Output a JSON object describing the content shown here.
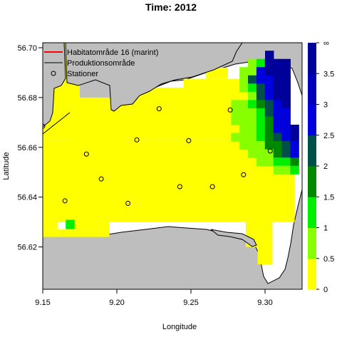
{
  "chart_data": {
    "type": "heatmap",
    "title": "Time: 2012",
    "xlabel": "Longitude",
    "ylabel": "Latitude",
    "xlim": [
      9.15,
      9.325
    ],
    "ylim": [
      56.603,
      56.702
    ],
    "x_ticks": [
      9.15,
      9.2,
      9.25,
      9.3
    ],
    "x_tick_labels": [
      "9.15",
      "9.20",
      "9.25",
      "9.30"
    ],
    "y_ticks": [
      56.62,
      56.64,
      56.66,
      56.68,
      56.7
    ],
    "y_tick_labels": [
      "56.62",
      "56.64",
      "56.66",
      "56.68",
      "56.70"
    ],
    "grid": false,
    "legend_position": "top-left",
    "legend": [
      {
        "label": "Habitatområde 16 (marint)",
        "symbol": "line",
        "color": "#ff0000"
      },
      {
        "label": "Produktionsområde",
        "symbol": "line",
        "color": "#000000"
      },
      {
        "label": "Stationer",
        "symbol": "circle",
        "color": "#000000"
      }
    ],
    "colorbar": {
      "ticks": [
        "0",
        "0.5",
        "1",
        "1.5",
        "2",
        "2.5",
        "3",
        "3.5",
        "∞"
      ],
      "colors": [
        "#ffff00",
        "#88ff00",
        "#00ee00",
        "#008800",
        "#00504a",
        "#0000dd",
        "#0000bb",
        "#00009a"
      ],
      "top_label": "∞"
    },
    "palette": {
      "Y": "#ffff00",
      "L": "#88ff00",
      "G": "#00ee00",
      "D": "#008800",
      "T": "#00504a",
      "B": "#0000dd",
      "M": "#0000bb",
      "N": "#00009a",
      "land": "#bebebe",
      "water": "#ffffff"
    },
    "grid_x0": 9.15,
    "grid_y_top": 56.702,
    "cell_dx": 0.00571,
    "cell_dy": 0.00329,
    "grid_rows": [
      "YYYYYYYYYYYYYYYYYYYYYYYYYYYYYYYYYYYYYYYY",
      "YYYYYYYYYYYYYYYYYYYYYYYYYYYYYYYYYYYYYYYY",
      "YYYYYYYYYYYYYYYYYYYYYYYYYYYYYYYYYYYYYYYY",
      "YYYYYYYYYYYYYYYYYYYYYYYYYYYYYYYYYYYYYYYY",
      "YYYYYYYYYYYYYYYYYYYYYYYYYYYYYYYYYYYYYYYY",
      "YYYYYYYYYYYYYYYYYYYYYYYYYYYYYYYYYYYYYYYY",
      "YYYYYYYYYYYYYYYYYYYYYYYYYYYYYYYYYYYYYYYY",
      "YYYYYYYYYYYYYYYYYYYYYYYYYYYYYYYYYYYYYYYY",
      "YYYYYYYYYYYYYYYYYYYYYYYYYYYYYYYYYYYYYYYY",
      "YYYYYYYYYYYYYYYYYYYYYYYYYYYYYYYYYYYYYYYY",
      "YYYYYYYYYYYYYYYYYYYYYYYYYYYYYYYYYYYYYYYY",
      "YYYYYYYYYYYYYYYYYYYYYYYYYYYYYYYYYYYYYYYY",
      "YYYYYYYYYYYYYYYYYYYYYYYYYYYYYYYYYYYYYYYY",
      "YYYYYYYYYYYYYYYYYYYYYYYYYYYYYYYYYYYYYYYY",
      "YYYYYYYYYYYYYYYYYYYYYYYYYYYYYYYYYYYYYYYY",
      "YYYYYYYYYYYYYYYYYYYYYYYYYYYYYYYYYYYYYYYY",
      "YYYYYYYYYYYYYYYYYYYYYYYYYYYYYYYYYYYYYYYY",
      "YYYYYYYYYYYYYYYYYYYYYYYYYYYYYYYYYYYYYYYY",
      "YYYYYYYYYYYYYYYYYYYYYYYYYYYYYYYYYYYYYYYY",
      "YYYYYYYYYYYYYYYYYYYYYYYYYYYYYYYYYYYYYYYY",
      "YYYYYYYYYYYYYYYYYYYYYYYYYYYYYYYYYYYYYYYY",
      "YYYYYYYYYYYYYYYYYYYYYYYYYYYYYYYYYYYYYYYY",
      "YYYYYYYYYYYYYYYYYYYYYYYYYYYYYYYYYYYYYYYY",
      "YYYYYYYYYYYYYYYYYYYYYYYYYYYYYYYYYYYYYYYY",
      "YYYYYYYYYYYYYYYYYYYYYYYYYYYYYYYYYYYYYYYY",
      "YYYYYYYYYYYYYYYYYYYYYYYYYYYYYYYYYYYYYYYY",
      "YYYYYYYYYYYYYYYYYYYYYYYYYYYYYYYYYYYYYYYY",
      "YYYYYYYYYYYYYYYYYYYYYYYYYYYYYYYYYYYYYYYY",
      "YYYYYYYYYYYYYYYYYYYYYYYYYYYYYYYYYYYYYYYY",
      "YYYYYYYYYYYYYYYYYYYYYYYYYYYYYYYYYYYYYYYY"
    ],
    "cells": [
      {
        "c": "N",
        "x0": 9.3,
        "y0": 56.6955,
        "w": 0.0057,
        "h": 0.0033
      },
      {
        "c": "L",
        "x0": 9.2885,
        "y0": 56.6922,
        "w": 0.0057,
        "h": 0.0033
      },
      {
        "c": "G",
        "x0": 9.2942,
        "y0": 56.6922,
        "w": 0.0057,
        "h": 0.0033
      },
      {
        "c": "N",
        "x0": 9.2999,
        "y0": 56.6922,
        "w": 0.0057,
        "h": 0.0033
      },
      {
        "c": "N",
        "x0": 9.3056,
        "y0": 56.6922,
        "w": 0.0057,
        "h": 0.0033
      },
      {
        "c": "N",
        "x0": 9.3113,
        "y0": 56.6922,
        "w": 0.0057,
        "h": 0.0033
      },
      {
        "c": "L",
        "x0": 9.2828,
        "y0": 56.6889,
        "w": 0.0057,
        "h": 0.0033
      },
      {
        "c": "L",
        "x0": 9.2885,
        "y0": 56.6889,
        "w": 0.0057,
        "h": 0.0033
      },
      {
        "c": "B",
        "x0": 9.2942,
        "y0": 56.6889,
        "w": 0.0057,
        "h": 0.0033
      },
      {
        "c": "N",
        "x0": 9.2999,
        "y0": 56.6889,
        "w": 0.0057,
        "h": 0.0033
      },
      {
        "c": "N",
        "x0": 9.3056,
        "y0": 56.6889,
        "w": 0.0057,
        "h": 0.0033
      },
      {
        "c": "N",
        "x0": 9.3113,
        "y0": 56.6889,
        "w": 0.0057,
        "h": 0.0033
      },
      {
        "c": "L",
        "x0": 9.2828,
        "y0": 56.6856,
        "w": 0.0057,
        "h": 0.0033
      },
      {
        "c": "T",
        "x0": 9.2885,
        "y0": 56.6856,
        "w": 0.0057,
        "h": 0.0033
      },
      {
        "c": "B",
        "x0": 9.2942,
        "y0": 56.6856,
        "w": 0.0057,
        "h": 0.0033
      },
      {
        "c": "B",
        "x0": 9.2999,
        "y0": 56.6856,
        "w": 0.0057,
        "h": 0.0033
      },
      {
        "c": "N",
        "x0": 9.3056,
        "y0": 56.6856,
        "w": 0.0057,
        "h": 0.0033
      },
      {
        "c": "N",
        "x0": 9.3113,
        "y0": 56.6856,
        "w": 0.0057,
        "h": 0.0033
      },
      {
        "c": "L",
        "x0": 9.2828,
        "y0": 56.6823,
        "w": 0.0057,
        "h": 0.0033
      },
      {
        "c": "G",
        "x0": 9.2885,
        "y0": 56.6823,
        "w": 0.0057,
        "h": 0.0033
      },
      {
        "c": "T",
        "x0": 9.2942,
        "y0": 56.6823,
        "w": 0.0057,
        "h": 0.0033
      },
      {
        "c": "B",
        "x0": 9.2999,
        "y0": 56.6823,
        "w": 0.0057,
        "h": 0.0033
      },
      {
        "c": "N",
        "x0": 9.3056,
        "y0": 56.6823,
        "w": 0.0057,
        "h": 0.0033
      },
      {
        "c": "N",
        "x0": 9.3113,
        "y0": 56.6823,
        "w": 0.0057,
        "h": 0.0033
      },
      {
        "c": "L",
        "x0": 9.2885,
        "y0": 56.679,
        "w": 0.0057,
        "h": 0.0033
      },
      {
        "c": "T",
        "x0": 9.2942,
        "y0": 56.679,
        "w": 0.0057,
        "h": 0.0033
      },
      {
        "c": "B",
        "x0": 9.2999,
        "y0": 56.679,
        "w": 0.0057,
        "h": 0.0033
      },
      {
        "c": "N",
        "x0": 9.3056,
        "y0": 56.679,
        "w": 0.0057,
        "h": 0.0033
      },
      {
        "c": "N",
        "x0": 9.3113,
        "y0": 56.679,
        "w": 0.0057,
        "h": 0.0033
      },
      {
        "c": "L",
        "x0": 9.2771,
        "y0": 56.6757,
        "w": 0.0057,
        "h": 0.0033
      },
      {
        "c": "L",
        "x0": 9.2828,
        "y0": 56.6757,
        "w": 0.0057,
        "h": 0.0033
      },
      {
        "c": "G",
        "x0": 9.2885,
        "y0": 56.6757,
        "w": 0.0057,
        "h": 0.0033
      },
      {
        "c": "D",
        "x0": 9.2942,
        "y0": 56.6757,
        "w": 0.0057,
        "h": 0.0033
      },
      {
        "c": "T",
        "x0": 9.2999,
        "y0": 56.6757,
        "w": 0.0057,
        "h": 0.0033
      },
      {
        "c": "B",
        "x0": 9.3056,
        "y0": 56.6757,
        "w": 0.0057,
        "h": 0.0033
      },
      {
        "c": "N",
        "x0": 9.3113,
        "y0": 56.6757,
        "w": 0.0057,
        "h": 0.0033
      },
      {
        "c": "L",
        "x0": 9.2771,
        "y0": 56.6724,
        "w": 0.0057,
        "h": 0.0033
      },
      {
        "c": "L",
        "x0": 9.2828,
        "y0": 56.6724,
        "w": 0.0057,
        "h": 0.0033
      },
      {
        "c": "L",
        "x0": 9.2885,
        "y0": 56.6724,
        "w": 0.0057,
        "h": 0.0033
      },
      {
        "c": "G",
        "x0": 9.2942,
        "y0": 56.6724,
        "w": 0.0057,
        "h": 0.0033
      },
      {
        "c": "T",
        "x0": 9.2999,
        "y0": 56.6724,
        "w": 0.0057,
        "h": 0.0033
      },
      {
        "c": "B",
        "x0": 9.3056,
        "y0": 56.6724,
        "w": 0.0057,
        "h": 0.0033
      },
      {
        "c": "B",
        "x0": 9.3113,
        "y0": 56.6724,
        "w": 0.0057,
        "h": 0.0033
      },
      {
        "c": "L",
        "x0": 9.2771,
        "y0": 56.6691,
        "w": 0.0057,
        "h": 0.0033
      },
      {
        "c": "L",
        "x0": 9.2828,
        "y0": 56.6691,
        "w": 0.0057,
        "h": 0.0033
      },
      {
        "c": "L",
        "x0": 9.2885,
        "y0": 56.6691,
        "w": 0.0057,
        "h": 0.0033
      },
      {
        "c": "G",
        "x0": 9.2942,
        "y0": 56.6691,
        "w": 0.0057,
        "h": 0.0033
      },
      {
        "c": "D",
        "x0": 9.2999,
        "y0": 56.6691,
        "w": 0.0057,
        "h": 0.0033
      },
      {
        "c": "B",
        "x0": 9.3056,
        "y0": 56.6691,
        "w": 0.0057,
        "h": 0.0033
      },
      {
        "c": "B",
        "x0": 9.3113,
        "y0": 56.6691,
        "w": 0.0057,
        "h": 0.0033
      },
      {
        "c": "L",
        "x0": 9.2828,
        "y0": 56.6658,
        "w": 0.0057,
        "h": 0.0033
      },
      {
        "c": "L",
        "x0": 9.2885,
        "y0": 56.6658,
        "w": 0.0057,
        "h": 0.0033
      },
      {
        "c": "G",
        "x0": 9.2942,
        "y0": 56.6658,
        "w": 0.0057,
        "h": 0.0033
      },
      {
        "c": "D",
        "x0": 9.2999,
        "y0": 56.6658,
        "w": 0.0057,
        "h": 0.0033
      },
      {
        "c": "B",
        "x0": 9.3056,
        "y0": 56.6658,
        "w": 0.0057,
        "h": 0.0033
      },
      {
        "c": "B",
        "x0": 9.3113,
        "y0": 56.6658,
        "w": 0.0057,
        "h": 0.0033
      },
      {
        "c": "N",
        "x0": 9.317,
        "y0": 56.6658,
        "w": 0.0057,
        "h": 0.0033
      },
      {
        "c": "L",
        "x0": 9.2771,
        "y0": 56.6625,
        "w": 0.0057,
        "h": 0.0033
      },
      {
        "c": "L",
        "x0": 9.2828,
        "y0": 56.6625,
        "w": 0.0057,
        "h": 0.0033
      },
      {
        "c": "L",
        "x0": 9.2885,
        "y0": 56.6625,
        "w": 0.0057,
        "h": 0.0033
      },
      {
        "c": "G",
        "x0": 9.2942,
        "y0": 56.6625,
        "w": 0.0057,
        "h": 0.0033
      },
      {
        "c": "D",
        "x0": 9.2999,
        "y0": 56.6625,
        "w": 0.0057,
        "h": 0.0033
      },
      {
        "c": "T",
        "x0": 9.3056,
        "y0": 56.6625,
        "w": 0.0057,
        "h": 0.0033
      },
      {
        "c": "B",
        "x0": 9.3113,
        "y0": 56.6625,
        "w": 0.0057,
        "h": 0.0033
      },
      {
        "c": "N",
        "x0": 9.317,
        "y0": 56.6625,
        "w": 0.0057,
        "h": 0.0033
      },
      {
        "c": "L",
        "x0": 9.2828,
        "y0": 56.6592,
        "w": 0.0057,
        "h": 0.0033
      },
      {
        "c": "L",
        "x0": 9.2885,
        "y0": 56.6592,
        "w": 0.0057,
        "h": 0.0033
      },
      {
        "c": "L",
        "x0": 9.2942,
        "y0": 56.6592,
        "w": 0.0057,
        "h": 0.0033
      },
      {
        "c": "D",
        "x0": 9.2999,
        "y0": 56.6592,
        "w": 0.0057,
        "h": 0.0033
      },
      {
        "c": "D",
        "x0": 9.3056,
        "y0": 56.6592,
        "w": 0.0057,
        "h": 0.0033
      },
      {
        "c": "T",
        "x0": 9.3113,
        "y0": 56.6592,
        "w": 0.0057,
        "h": 0.0033
      },
      {
        "c": "B",
        "x0": 9.317,
        "y0": 56.6592,
        "w": 0.0057,
        "h": 0.0033
      },
      {
        "c": "L",
        "x0": 9.2885,
        "y0": 56.6559,
        "w": 0.0057,
        "h": 0.0033
      },
      {
        "c": "L",
        "x0": 9.2942,
        "y0": 56.6559,
        "w": 0.0057,
        "h": 0.0033
      },
      {
        "c": "L",
        "x0": 9.2999,
        "y0": 56.6559,
        "w": 0.0057,
        "h": 0.0033
      },
      {
        "c": "D",
        "x0": 9.3056,
        "y0": 56.6559,
        "w": 0.0057,
        "h": 0.0033
      },
      {
        "c": "T",
        "x0": 9.3113,
        "y0": 56.6559,
        "w": 0.0057,
        "h": 0.0033
      },
      {
        "c": "B",
        "x0": 9.317,
        "y0": 56.6559,
        "w": 0.0057,
        "h": 0.0033
      },
      {
        "c": "L",
        "x0": 9.2942,
        "y0": 56.6526,
        "w": 0.0057,
        "h": 0.0033
      },
      {
        "c": "L",
        "x0": 9.2999,
        "y0": 56.6526,
        "w": 0.0057,
        "h": 0.0033
      },
      {
        "c": "G",
        "x0": 9.3056,
        "y0": 56.6526,
        "w": 0.0057,
        "h": 0.0033
      },
      {
        "c": "G",
        "x0": 9.3113,
        "y0": 56.6526,
        "w": 0.0057,
        "h": 0.0033
      },
      {
        "c": "D",
        "x0": 9.317,
        "y0": 56.6526,
        "w": 0.0057,
        "h": 0.0033
      },
      {
        "c": "L",
        "x0": 9.3056,
        "y0": 56.6493,
        "w": 0.0057,
        "h": 0.0033
      },
      {
        "c": "L",
        "x0": 9.3113,
        "y0": 56.6493,
        "w": 0.0057,
        "h": 0.0033
      },
      {
        "c": "G",
        "x0": 9.317,
        "y0": 56.6493,
        "w": 0.0057,
        "h": 0.0033
      },
      {
        "c": "G",
        "x0": 9.1655,
        "y0": 56.6273,
        "w": 0.0057,
        "h": 0.0036
      }
    ],
    "stations": [
      {
        "x": 9.15,
        "y": 56.6685
      },
      {
        "x": 9.2285,
        "y": 56.6755
      },
      {
        "x": 9.2765,
        "y": 56.675
      },
      {
        "x": 9.2135,
        "y": 56.663
      },
      {
        "x": 9.2485,
        "y": 56.6627
      },
      {
        "x": 9.1795,
        "y": 56.6573
      },
      {
        "x": 9.3035,
        "y": 56.6585
      },
      {
        "x": 9.1895,
        "y": 56.6473
      },
      {
        "x": 9.2855,
        "y": 56.649
      },
      {
        "x": 9.2425,
        "y": 56.6442
      },
      {
        "x": 9.2645,
        "y": 56.6442
      },
      {
        "x": 9.165,
        "y": 56.6385
      },
      {
        "x": 9.2075,
        "y": 56.6375
      }
    ]
  }
}
